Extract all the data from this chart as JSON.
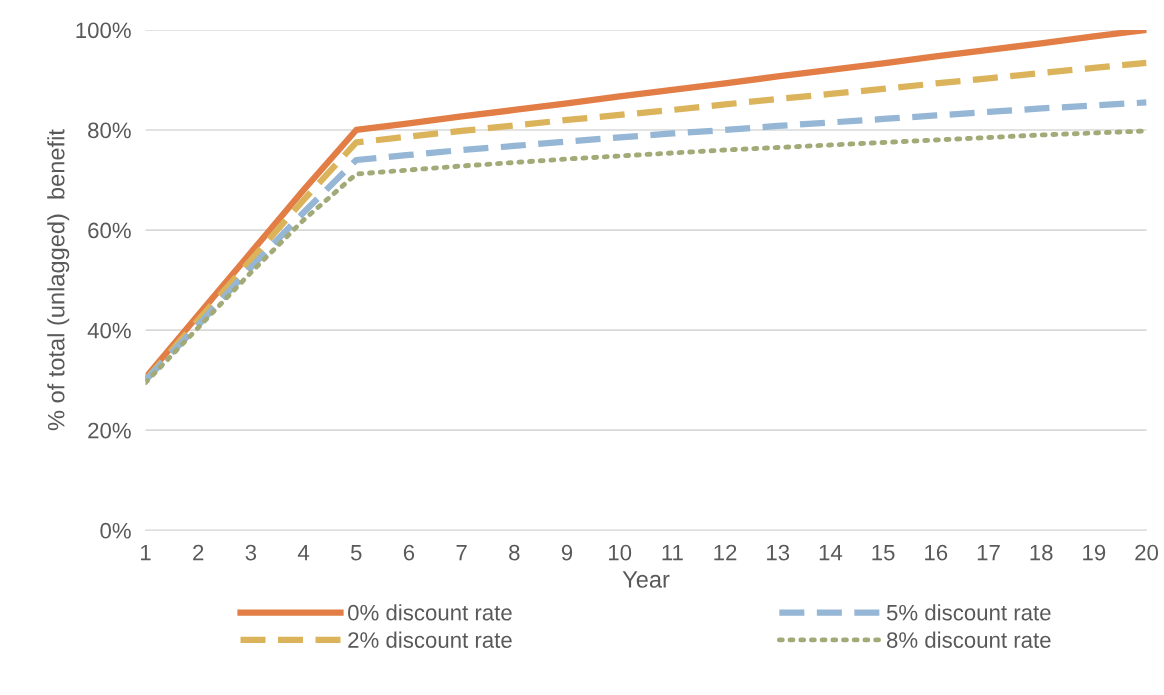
{
  "chart_data": {
    "type": "line",
    "xlabel": "Year",
    "ylabel": "% of total (unlagged)  benefit",
    "categories": [
      "1",
      "2",
      "3",
      "4",
      "5",
      "6",
      "7",
      "8",
      "9",
      "10",
      "11",
      "12",
      "13",
      "14",
      "15",
      "16",
      "17",
      "18",
      "19",
      "20"
    ],
    "series": [
      {
        "name": "0% discount rate",
        "color": "#e27d45",
        "line_style": "solid",
        "values": [
          30.5,
          43,
          55.5,
          68,
          80,
          81.3,
          82.7,
          84,
          85.3,
          86.7,
          88,
          89.3,
          90.7,
          92,
          93.3,
          94.7,
          96,
          97.3,
          98.7,
          100
        ]
      },
      {
        "name": "2% discount rate",
        "color": "#dbb35a",
        "line_style": "dashed",
        "values": [
          30,
          42,
          54,
          66,
          77.5,
          78.7,
          79.8,
          80.9,
          82,
          83,
          84,
          85.1,
          86.2,
          87.2,
          88.2,
          89.3,
          90.3,
          91.4,
          92.4,
          93.4
        ]
      },
      {
        "name": "5% discount rate",
        "color": "#95b6d4",
        "line_style": "dashed",
        "values": [
          30,
          41,
          52.5,
          63.5,
          74,
          75,
          76,
          76.8,
          77.7,
          78.5,
          79.3,
          80,
          80.8,
          81.5,
          82.2,
          82.9,
          83.6,
          84.3,
          84.9,
          85.5
        ]
      },
      {
        "name": "8% discount rate",
        "color": "#a2aa77",
        "line_style": "dotted",
        "values": [
          29.5,
          40.5,
          51.5,
          62,
          71.2,
          72,
          72.8,
          73.5,
          74.2,
          74.8,
          75.4,
          76,
          76.5,
          77,
          77.5,
          78,
          78.5,
          79,
          79.4,
          79.8
        ]
      }
    ],
    "ylim": [
      0,
      100
    ],
    "yticks": [
      {
        "value": 0,
        "label": "0%"
      },
      {
        "value": 20,
        "label": "20%"
      },
      {
        "value": 40,
        "label": "40%"
      },
      {
        "value": 60,
        "label": "60%"
      },
      {
        "value": 80,
        "label": "80%"
      },
      {
        "value": 100,
        "label": "100%"
      }
    ],
    "grid": "y",
    "legend": "bottom",
    "marker": "none"
  }
}
